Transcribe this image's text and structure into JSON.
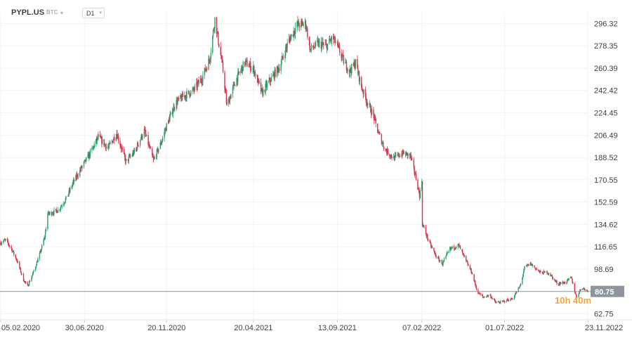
{
  "header": {
    "symbol": "PYPL.US",
    "currency": "BTC",
    "timeframe": "D1"
  },
  "countdown": "10h 40m",
  "colors": {
    "up": "#2e9e6a",
    "down": "#d6334b",
    "price_line": "#8e959e",
    "price_label_bg": "#8e959e",
    "countdown": "#f2a43a"
  },
  "chart_data": {
    "type": "candlestick",
    "y_ticks": [
      "296.32",
      "278.35",
      "260.39",
      "242.42",
      "224.45",
      "206.49",
      "188.52",
      "170.55",
      "152.59",
      "134.62",
      "116.65",
      "98.69",
      "62.75"
    ],
    "y_tick_values": [
      296.32,
      278.35,
      260.39,
      242.42,
      224.45,
      206.49,
      188.52,
      170.55,
      152.59,
      134.62,
      116.65,
      98.69,
      62.75
    ],
    "x_ticks": [
      "05.02.2020",
      "30.06.2020",
      "20.11.2020",
      "20.04.2021",
      "13.09.2021",
      "07.02.2022",
      "01.07.2022",
      "23.11.2022"
    ],
    "x_tick_dates": [
      "2020-02-05",
      "2020-06-30",
      "2020-11-20",
      "2021-04-20",
      "2021-09-13",
      "2022-02-07",
      "2022-07-01",
      "2022-11-23"
    ],
    "current_price": 80.75,
    "ylim": [
      58.0,
      305.0
    ],
    "xlim": [
      "2020-02-04",
      "2022-11-24"
    ],
    "series_path": [
      [
        "2020-02-05",
        120
      ],
      [
        "2020-02-14",
        122
      ],
      [
        "2020-02-24",
        115
      ],
      [
        "2020-03-05",
        105
      ],
      [
        "2020-03-16",
        90
      ],
      [
        "2020-03-23",
        85
      ],
      [
        "2020-04-02",
        96
      ],
      [
        "2020-04-14",
        112
      ],
      [
        "2020-04-22",
        125
      ],
      [
        "2020-04-27",
        143
      ],
      [
        "2020-05-15",
        146
      ],
      [
        "2020-05-30",
        156
      ],
      [
        "2020-06-10",
        168
      ],
      [
        "2020-06-22",
        178
      ],
      [
        "2020-07-10",
        192
      ],
      [
        "2020-07-24",
        205
      ],
      [
        "2020-08-10",
        196
      ],
      [
        "2020-08-25",
        208
      ],
      [
        "2020-09-10",
        185
      ],
      [
        "2020-09-25",
        193
      ],
      [
        "2020-10-12",
        210
      ],
      [
        "2020-10-28",
        186
      ],
      [
        "2020-11-10",
        200
      ],
      [
        "2020-11-20",
        214
      ],
      [
        "2020-12-05",
        232
      ],
      [
        "2020-12-20",
        238
      ],
      [
        "2021-01-05",
        242
      ],
      [
        "2021-01-20",
        252
      ],
      [
        "2021-02-03",
        268
      ],
      [
        "2021-02-12",
        300
      ],
      [
        "2021-02-25",
        262
      ],
      [
        "2021-03-05",
        230
      ],
      [
        "2021-03-20",
        250
      ],
      [
        "2021-04-05",
        265
      ],
      [
        "2021-04-20",
        260
      ],
      [
        "2021-05-05",
        240
      ],
      [
        "2021-05-18",
        250
      ],
      [
        "2021-06-05",
        262
      ],
      [
        "2021-06-20",
        282
      ],
      [
        "2021-07-05",
        295
      ],
      [
        "2021-07-20",
        296
      ],
      [
        "2021-07-28",
        275
      ],
      [
        "2021-08-10",
        280
      ],
      [
        "2021-08-25",
        278
      ],
      [
        "2021-09-05",
        285
      ],
      [
        "2021-09-13",
        278
      ],
      [
        "2021-09-25",
        265
      ],
      [
        "2021-10-05",
        258
      ],
      [
        "2021-10-15",
        265
      ],
      [
        "2021-10-25",
        245
      ],
      [
        "2021-11-05",
        232
      ],
      [
        "2021-11-15",
        222
      ],
      [
        "2021-11-22",
        210
      ],
      [
        "2021-12-05",
        195
      ],
      [
        "2021-12-20",
        188
      ],
      [
        "2022-01-05",
        192
      ],
      [
        "2022-01-18",
        190
      ],
      [
        "2022-01-28",
        172
      ],
      [
        "2022-02-03",
        158
      ],
      [
        "2022-02-07",
        170
      ],
      [
        "2022-02-08",
        135
      ],
      [
        "2022-02-20",
        120
      ],
      [
        "2022-03-05",
        108
      ],
      [
        "2022-03-15",
        103
      ],
      [
        "2022-03-28",
        115
      ],
      [
        "2022-04-12",
        118
      ],
      [
        "2022-04-25",
        105
      ],
      [
        "2022-05-05",
        96
      ],
      [
        "2022-05-15",
        80
      ],
      [
        "2022-05-25",
        76
      ],
      [
        "2022-06-05",
        78
      ],
      [
        "2022-06-15",
        72
      ],
      [
        "2022-06-25",
        72
      ],
      [
        "2022-07-01",
        73
      ],
      [
        "2022-07-15",
        75
      ],
      [
        "2022-07-28",
        85
      ],
      [
        "2022-08-05",
        100
      ],
      [
        "2022-08-15",
        103
      ],
      [
        "2022-09-01",
        96
      ],
      [
        "2022-09-15",
        96
      ],
      [
        "2022-10-01",
        87
      ],
      [
        "2022-10-15",
        88
      ],
      [
        "2022-10-25",
        92
      ],
      [
        "2022-11-03",
        76
      ],
      [
        "2022-11-12",
        84
      ],
      [
        "2022-11-23",
        80.75
      ]
    ]
  }
}
